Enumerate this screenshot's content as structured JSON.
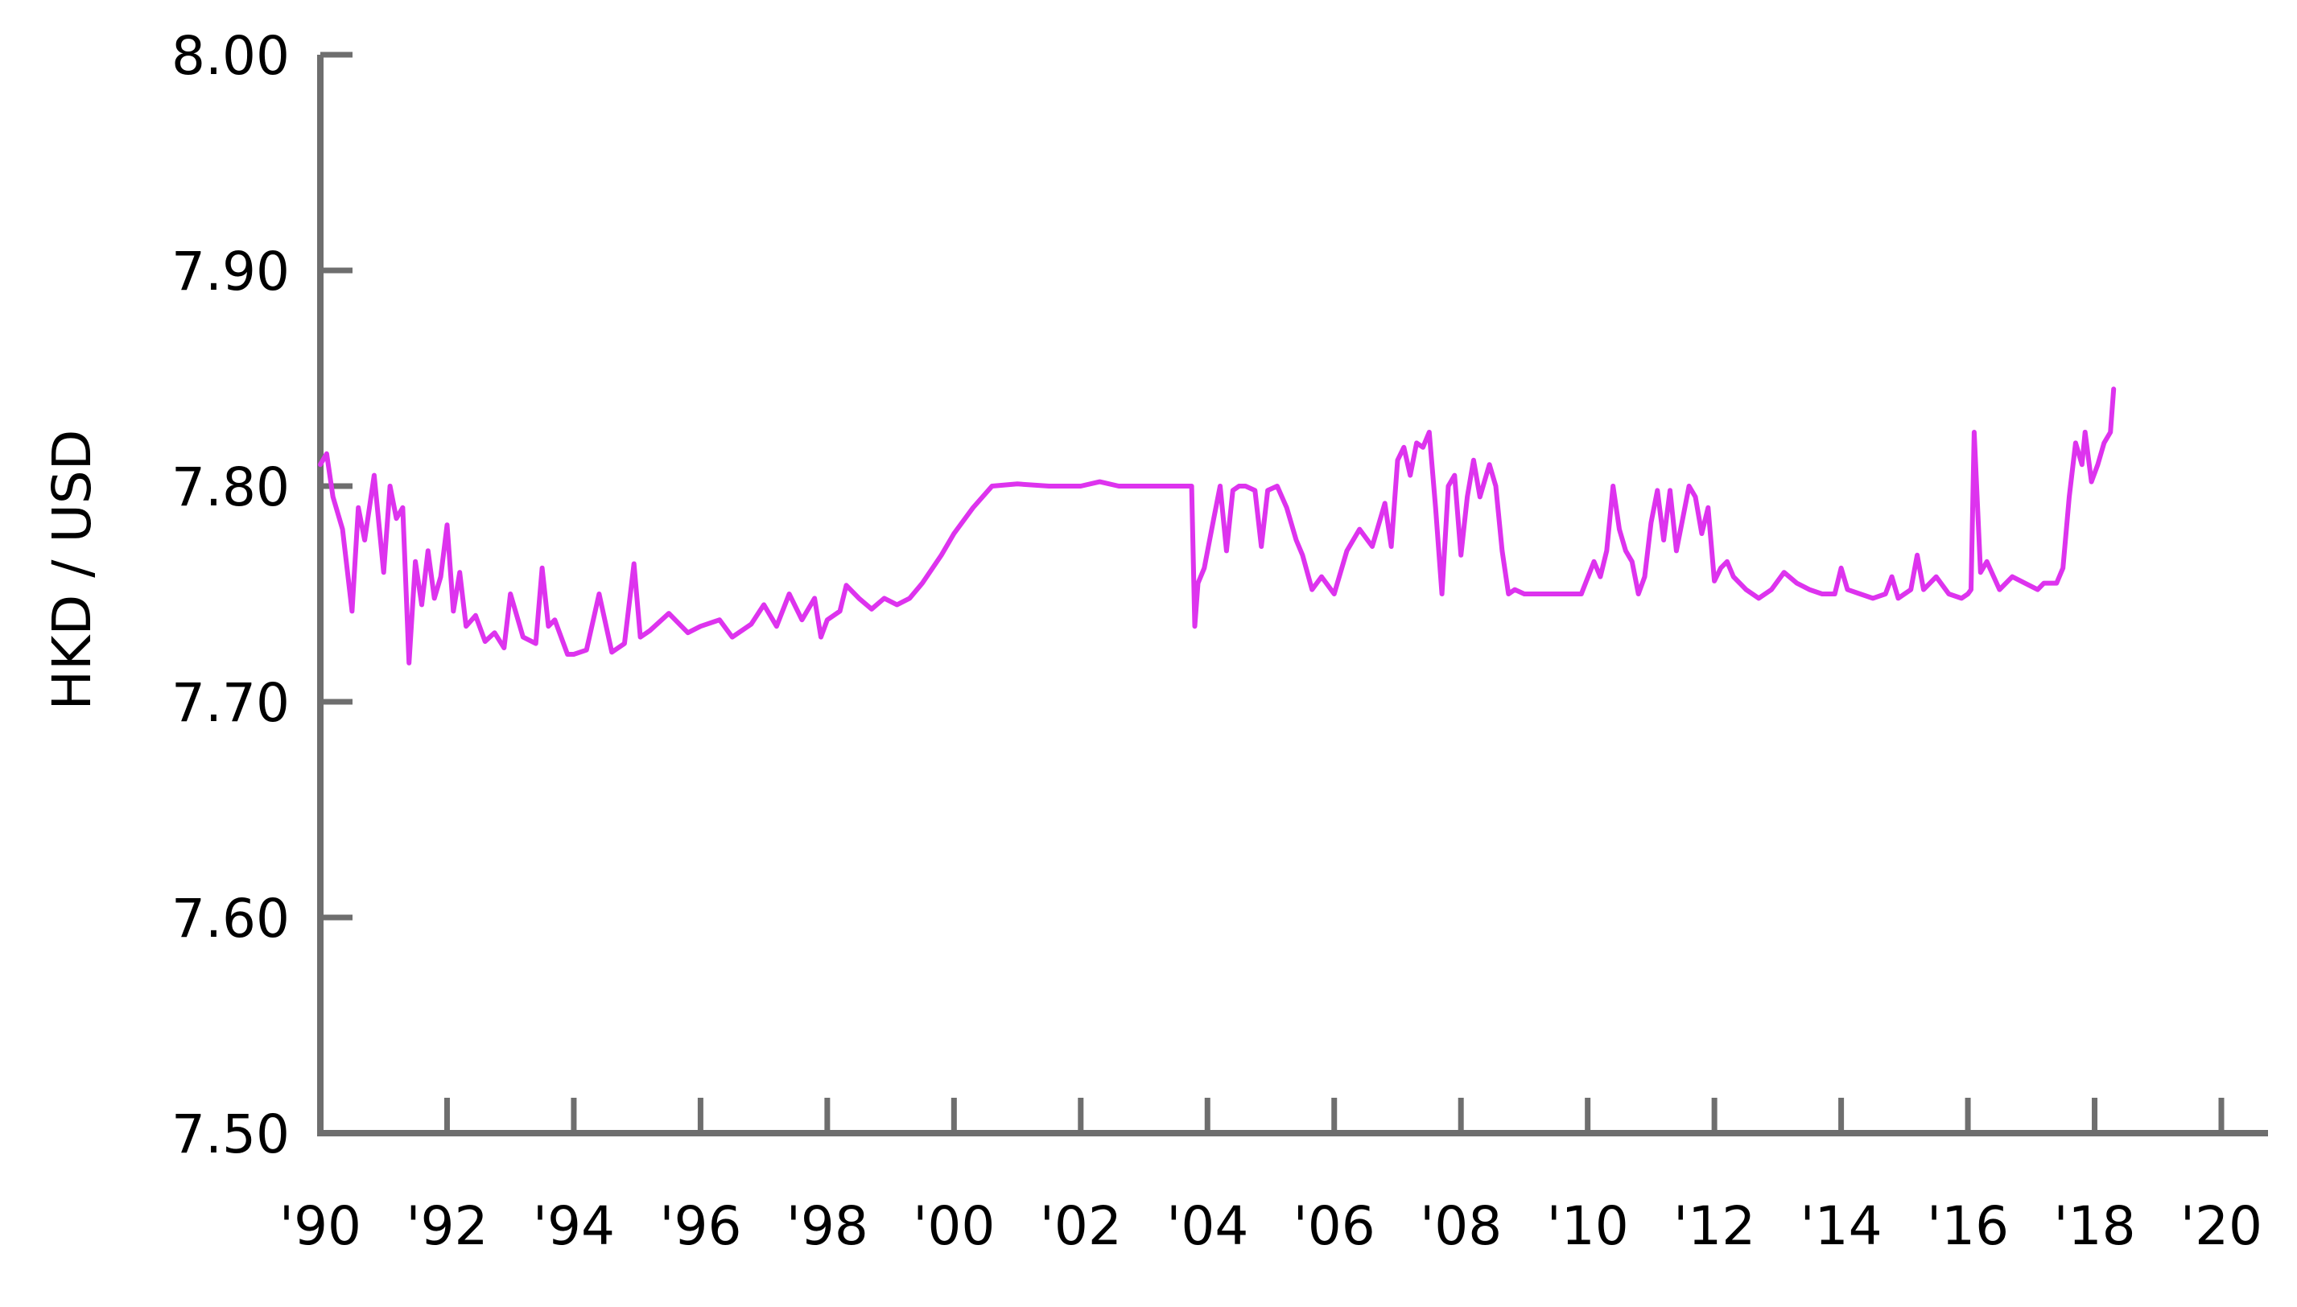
{
  "chart_data": {
    "type": "line",
    "title": "",
    "xlabel": "",
    "ylabel": "HKD / USD",
    "xlim": [
      1990,
      2020
    ],
    "ylim": [
      7.5,
      8.0
    ],
    "grid": false,
    "legend": "none",
    "line_color": "#dd33ee",
    "axis_color": "#6e6e6e",
    "y_ticks": [
      {
        "value": 7.5,
        "label": "7.50"
      },
      {
        "value": 7.6,
        "label": "7.60"
      },
      {
        "value": 7.7,
        "label": "7.70"
      },
      {
        "value": 7.8,
        "label": "7.80"
      },
      {
        "value": 7.9,
        "label": "7.90"
      },
      {
        "value": 8.0,
        "label": "8.00"
      }
    ],
    "x_ticks": [
      {
        "value": 1990,
        "label": "'90"
      },
      {
        "value": 1992,
        "label": "'92"
      },
      {
        "value": 1994,
        "label": "'94"
      },
      {
        "value": 1996,
        "label": "'96"
      },
      {
        "value": 1998,
        "label": "'98"
      },
      {
        "value": 2000,
        "label": "'00"
      },
      {
        "value": 2002,
        "label": "'02"
      },
      {
        "value": 2004,
        "label": "'04"
      },
      {
        "value": 2006,
        "label": "'06"
      },
      {
        "value": 2008,
        "label": "'08"
      },
      {
        "value": 2010,
        "label": "'10"
      },
      {
        "value": 2012,
        "label": "'12"
      },
      {
        "value": 2014,
        "label": "'14"
      },
      {
        "value": 2016,
        "label": "'16"
      },
      {
        "value": 2018,
        "label": "'18"
      },
      {
        "value": 2020,
        "label": "'20"
      }
    ],
    "series": [
      {
        "x": [
          1990.0,
          1990.1,
          1990.2,
          1990.35,
          1990.5,
          1990.6,
          1990.7,
          1990.85,
          1991.0,
          1991.1,
          1991.2,
          1991.3,
          1991.4,
          1991.5,
          1991.6,
          1991.7,
          1991.8,
          1991.9,
          1992.0,
          1992.1,
          1992.2,
          1992.3,
          1992.45,
          1992.6,
          1992.75,
          1992.9,
          1993.0,
          1993.2,
          1993.4,
          1993.5,
          1993.6,
          1993.7,
          1993.8,
          1993.9,
          1994.0,
          1994.2,
          1994.4,
          1994.6,
          1994.8,
          1994.95,
          1995.05,
          1995.2,
          1995.5,
          1995.8,
          1996.0,
          1996.3,
          1996.5,
          1996.8,
          1997.0,
          1997.2,
          1997.4,
          1997.6,
          1997.8,
          1997.9,
          1998.0,
          1998.2,
          1998.3,
          1998.5,
          1998.7,
          1998.9,
          1999.1,
          1999.3,
          1999.5,
          1999.8,
          2000.0,
          2000.3,
          2000.6,
          2001.0,
          2001.5,
          2002.0,
          2002.3,
          2002.6,
          2003.0,
          2003.4,
          2003.6,
          2003.75,
          2003.8,
          2003.85,
          2003.95,
          2004.1,
          2004.2,
          2004.3,
          2004.4,
          2004.5,
          2004.6,
          2004.75,
          2004.85,
          2004.95,
          2005.1,
          2005.25,
          2005.4,
          2005.5,
          2005.65,
          2005.8,
          2006.0,
          2006.2,
          2006.4,
          2006.6,
          2006.8,
          2006.9,
          2007.0,
          2007.1,
          2007.2,
          2007.3,
          2007.4,
          2007.5,
          2007.6,
          2007.7,
          2007.8,
          2007.9,
          2008.0,
          2008.1,
          2008.2,
          2008.3,
          2008.45,
          2008.55,
          2008.65,
          2008.75,
          2008.85,
          2009.0,
          2009.3,
          2009.6,
          2009.9,
          2010.1,
          2010.2,
          2010.3,
          2010.4,
          2010.5,
          2010.6,
          2010.7,
          2010.8,
          2010.9,
          2011.0,
          2011.1,
          2011.2,
          2011.3,
          2011.4,
          2011.5,
          2011.6,
          2011.7,
          2011.8,
          2011.9,
          2012.0,
          2012.1,
          2012.2,
          2012.3,
          2012.5,
          2012.7,
          2012.9,
          2013.1,
          2013.3,
          2013.5,
          2013.7,
          2013.9,
          2014.0,
          2014.1,
          2014.3,
          2014.5,
          2014.7,
          2014.8,
          2014.9,
          2015.1,
          2015.2,
          2015.3,
          2015.5,
          2015.7,
          2015.9,
          2016.0,
          2016.05,
          2016.1,
          2016.2,
          2016.3,
          2016.5,
          2016.7,
          2016.9,
          2017.1,
          2017.2,
          2017.4,
          2017.5,
          2017.6,
          2017.7,
          2017.8,
          2017.85,
          2017.95,
          2018.05,
          2018.15,
          2018.25,
          2018.3
        ],
        "y": [
          7.81,
          7.815,
          7.795,
          7.78,
          7.742,
          7.79,
          7.775,
          7.805,
          7.76,
          7.8,
          7.785,
          7.79,
          7.718,
          7.765,
          7.745,
          7.77,
          7.748,
          7.758,
          7.782,
          7.742,
          7.76,
          7.735,
          7.74,
          7.728,
          7.732,
          7.725,
          7.75,
          7.73,
          7.727,
          7.762,
          7.735,
          7.738,
          7.73,
          7.722,
          7.722,
          7.724,
          7.75,
          7.723,
          7.727,
          7.764,
          7.73,
          7.733,
          7.741,
          7.732,
          7.735,
          7.738,
          7.73,
          7.736,
          7.745,
          7.735,
          7.75,
          7.738,
          7.748,
          7.73,
          7.738,
          7.742,
          7.754,
          7.748,
          7.743,
          7.748,
          7.745,
          7.748,
          7.755,
          7.768,
          7.778,
          7.79,
          7.8,
          7.801,
          7.8,
          7.8,
          7.802,
          7.8,
          7.8,
          7.8,
          7.8,
          7.8,
          7.735,
          7.755,
          7.762,
          7.785,
          7.8,
          7.77,
          7.798,
          7.8,
          7.8,
          7.798,
          7.772,
          7.798,
          7.8,
          7.79,
          7.775,
          7.768,
          7.752,
          7.758,
          7.75,
          7.77,
          7.78,
          7.772,
          7.792,
          7.772,
          7.812,
          7.818,
          7.805,
          7.82,
          7.818,
          7.825,
          7.79,
          7.75,
          7.8,
          7.805,
          7.768,
          7.795,
          7.812,
          7.795,
          7.81,
          7.8,
          7.77,
          7.75,
          7.752,
          7.75,
          7.75,
          7.75,
          7.75,
          7.765,
          7.758,
          7.77,
          7.8,
          7.78,
          7.77,
          7.765,
          7.75,
          7.758,
          7.783,
          7.798,
          7.775,
          7.798,
          7.77,
          7.785,
          7.8,
          7.795,
          7.778,
          7.79,
          7.756,
          7.762,
          7.765,
          7.758,
          7.752,
          7.748,
          7.752,
          7.76,
          7.755,
          7.752,
          7.75,
          7.75,
          7.762,
          7.752,
          7.75,
          7.748,
          7.75,
          7.758,
          7.748,
          7.752,
          7.768,
          7.752,
          7.758,
          7.75,
          7.748,
          7.75,
          7.752,
          7.825,
          7.76,
          7.765,
          7.752,
          7.758,
          7.755,
          7.752,
          7.755,
          7.755,
          7.762,
          7.795,
          7.82,
          7.81,
          7.825,
          7.802,
          7.81,
          7.82,
          7.825,
          7.845
        ]
      }
    ]
  }
}
